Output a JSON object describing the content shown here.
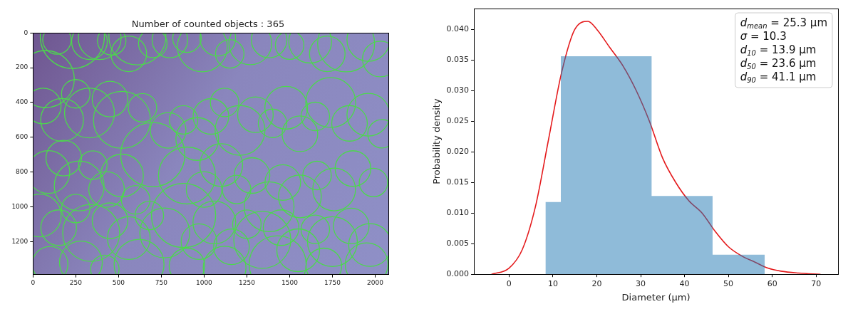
{
  "chart_data": [
    {
      "type": "bubble",
      "title": "Number of counted objects : 365",
      "color": "#4cd94c",
      "grid": false,
      "xlim": [
        0,
        2080
      ],
      "ylim": [
        1390,
        0
      ],
      "xticks": [
        0,
        250,
        500,
        750,
        1000,
        1250,
        1500,
        1750,
        2000
      ],
      "yticks": [
        0,
        200,
        400,
        600,
        800,
        1000,
        1200
      ],
      "x": [
        75,
        140,
        230,
        330,
        390,
        460,
        560,
        610,
        700,
        800,
        900,
        990,
        1080,
        1150,
        1270,
        1380,
        1500,
        1620,
        1720,
        1830,
        1960,
        2030,
        60,
        170,
        250,
        330,
        450,
        520,
        640,
        700,
        790,
        880,
        960,
        1040,
        1120,
        1210,
        1300,
        1400,
        1480,
        1560,
        1650,
        1740,
        1850,
        1960,
        2040,
        90,
        180,
        270,
        350,
        430,
        520,
        600,
        900,
        1000,
        1100,
        1190,
        1280,
        1380,
        1460,
        1560,
        1660,
        1760,
        1870,
        1990,
        40,
        150,
        250,
        340,
        450,
        560,
        680,
        770,
        880,
        970,
        1060,
        1160,
        1250,
        1340,
        1450,
        1550,
        1650,
        1750,
        1860,
        1970,
        100,
        280,
        420,
        620,
        900,
        1120,
        1430,
        1700,
        1950
      ],
      "y": [
        265,
        40,
        20,
        50,
        30,
        45,
        120,
        20,
        60,
        40,
        30,
        80,
        30,
        120,
        60,
        40,
        70,
        50,
        120,
        60,
        40,
        150,
        420,
        500,
        350,
        460,
        380,
        500,
        430,
        700,
        560,
        500,
        610,
        480,
        400,
        560,
        470,
        520,
        430,
        580,
        480,
        400,
        520,
        470,
        580,
        800,
        720,
        880,
        760,
        900,
        820,
        960,
        820,
        900,
        760,
        900,
        820,
        1000,
        860,
        940,
        820,
        900,
        780,
        860,
        1050,
        1120,
        1010,
        1150,
        1080,
        1180,
        1050,
        1150,
        1050,
        1200,
        1090,
        1230,
        1100,
        1190,
        1120,
        1250,
        1130,
        1200,
        1110,
        1220,
        1330,
        1320,
        1360,
        1330,
        1340,
        1350,
        1330,
        1340,
        1330
      ],
      "radius": [
        40,
        20,
        45,
        25,
        30,
        20,
        25,
        40,
        20,
        25,
        20,
        35,
        25,
        20,
        30,
        25,
        20,
        30,
        25,
        40,
        30,
        25,
        25,
        30,
        20,
        35,
        25,
        40,
        20,
        45,
        25,
        20,
        30,
        25,
        20,
        35,
        25,
        20,
        30,
        25,
        20,
        35,
        25,
        30,
        20,
        30,
        25,
        35,
        20,
        25,
        30,
        20,
        40,
        25,
        30,
        20,
        25,
        35,
        25,
        30,
        20,
        30,
        25,
        20,
        30,
        25,
        20,
        40,
        25,
        30,
        20,
        35,
        45,
        25,
        30,
        25,
        20,
        40,
        25,
        30,
        20,
        35,
        25,
        30,
        25,
        30,
        20,
        35,
        25,
        30,
        40,
        25,
        30
      ]
    },
    {
      "type": "histogram",
      "xlabel": "Diameter (μm)",
      "ylabel": "Probability density",
      "color": "#1f77b4",
      "grid": false,
      "bins": [
        8.3,
        11.8,
        32.5,
        46.4,
        58.3
      ],
      "values": [
        0.0118,
        0.0356,
        0.0128,
        0.0032
      ],
      "density_curve": {
        "type": "line",
        "color": "#e41a1c",
        "x": [
          -4,
          0,
          3,
          6,
          9,
          12,
          15,
          18,
          20,
          23,
          26,
          29,
          32,
          35,
          38,
          41,
          44,
          47,
          50,
          53,
          56,
          59,
          62,
          66,
          71
        ],
        "values": [
          0,
          0.001,
          0.004,
          0.011,
          0.022,
          0.033,
          0.04,
          0.0413,
          0.04,
          0.037,
          0.034,
          0.03,
          0.025,
          0.019,
          0.015,
          0.012,
          0.01,
          0.007,
          0.0045,
          0.003,
          0.002,
          0.001,
          0.0005,
          0.0002,
          0
        ]
      },
      "xlim": [
        -8,
        75
      ],
      "ylim": [
        0,
        0.0434
      ],
      "xticks": [
        0,
        10,
        20,
        30,
        40,
        50,
        60,
        70
      ],
      "yticks": [
        {
          "value": 0,
          "label": "0.000"
        },
        {
          "value": 0.005,
          "label": "0.005"
        },
        {
          "value": 0.01,
          "label": "0.010"
        },
        {
          "value": 0.015,
          "label": "0.015"
        },
        {
          "value": 0.02,
          "label": "0.020"
        },
        {
          "value": 0.025,
          "label": "0.025"
        },
        {
          "value": 0.03,
          "label": "0.030"
        },
        {
          "value": 0.035,
          "label": "0.035"
        },
        {
          "value": 0.04,
          "label": "0.040"
        }
      ],
      "annotations": [
        {
          "symbol": "d",
          "subscript": "mean",
          "relation": "=",
          "value": 25.3,
          "unit": "μm"
        },
        {
          "symbol": "σ",
          "subscript": "",
          "relation": "=",
          "value": 10.3,
          "unit": ""
        },
        {
          "symbol": "d",
          "subscript": "10",
          "relation": "=",
          "value": 13.9,
          "unit": "μm"
        },
        {
          "symbol": "d",
          "subscript": "50",
          "relation": "=",
          "value": 23.6,
          "unit": "μm"
        },
        {
          "symbol": "d",
          "subscript": "90",
          "relation": "=",
          "value": 41.1,
          "unit": "μm"
        }
      ]
    }
  ]
}
